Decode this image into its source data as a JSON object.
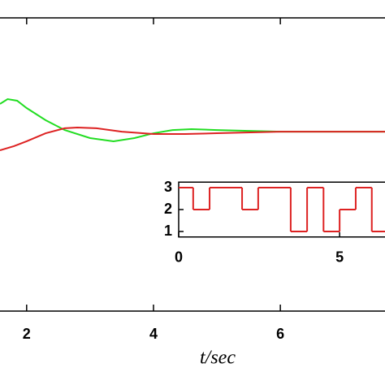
{
  "chart_data": [
    {
      "type": "line",
      "xlabel": "t/sec",
      "xlim": [
        1.58,
        7.65
      ],
      "ylim": [
        -1,
        1
      ],
      "xticks": [
        2,
        4,
        6
      ],
      "series": [
        {
          "name": "green",
          "color": "#22dd22",
          "x": [
            1.58,
            1.7,
            1.85,
            2.0,
            2.3,
            2.6,
            3.0,
            3.37,
            3.7,
            4.0,
            4.3,
            4.6,
            5.0,
            5.5,
            6.0,
            7.65
          ],
          "values": [
            0.413,
            0.446,
            0.435,
            0.385,
            0.302,
            0.235,
            0.18,
            0.158,
            0.18,
            0.213,
            0.235,
            0.241,
            0.235,
            0.229,
            0.224,
            0.224
          ]
        },
        {
          "name": "red",
          "color": "#dd2222",
          "x": [
            1.58,
            1.8,
            2.0,
            2.3,
            2.6,
            2.8,
            3.1,
            3.5,
            4.0,
            4.5,
            5.0,
            6.0,
            7.65
          ],
          "values": [
            0.097,
            0.125,
            0.158,
            0.213,
            0.247,
            0.252,
            0.247,
            0.224,
            0.208,
            0.208,
            0.213,
            0.224,
            0.224
          ]
        }
      ]
    },
    {
      "type": "step",
      "xlim": [
        0,
        6.41
      ],
      "ylim": [
        0.75,
        3.25
      ],
      "xticks": [
        0,
        5
      ],
      "yticks": [
        1,
        2,
        3
      ],
      "color": "#dd2222",
      "x": [
        0,
        0.45,
        0.96,
        1.97,
        2.47,
        3.48,
        3.99,
        4.5,
        5.0,
        5.5,
        6.0
      ],
      "values": [
        3,
        2,
        3,
        2,
        3,
        1,
        3,
        1,
        2,
        3,
        1
      ]
    }
  ]
}
